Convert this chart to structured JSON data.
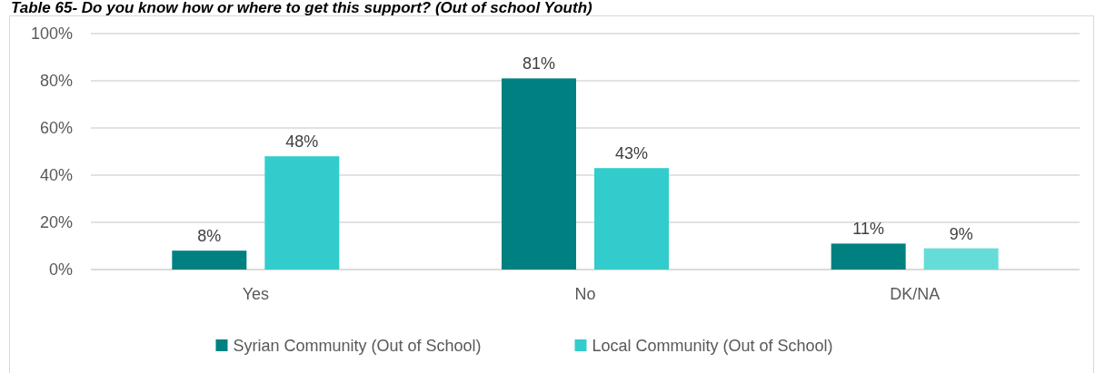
{
  "chart_data": {
    "type": "bar",
    "title": "Table 65- Do you know how or where to get this support? (Out of school Youth)",
    "categories": [
      "Yes",
      "No",
      "DK/NA"
    ],
    "series": [
      {
        "name": "Syrian Community (Out of School)",
        "color": "#008080",
        "values": [
          8,
          81,
          11
        ]
      },
      {
        "name": "Local Community (Out of School)",
        "color": "#33cccc",
        "colors": [
          "#33cccc",
          "#33cccc",
          "#66dcd9"
        ],
        "values": [
          48,
          43,
          9
        ]
      }
    ],
    "ylim": [
      0,
      100
    ],
    "yticks": [
      {
        "value": 0,
        "label": "0%"
      },
      {
        "value": 20,
        "label": "20%"
      },
      {
        "value": 40,
        "label": "40%"
      },
      {
        "value": 60,
        "label": "60%"
      },
      {
        "value": 80,
        "label": "80%"
      },
      {
        "value": 100,
        "label": "100%"
      }
    ],
    "grid": "y",
    "legend": "bottom",
    "value_labels": [
      [
        "8%",
        "81%",
        "11%"
      ],
      [
        "48%",
        "43%",
        "9%"
      ]
    ]
  }
}
